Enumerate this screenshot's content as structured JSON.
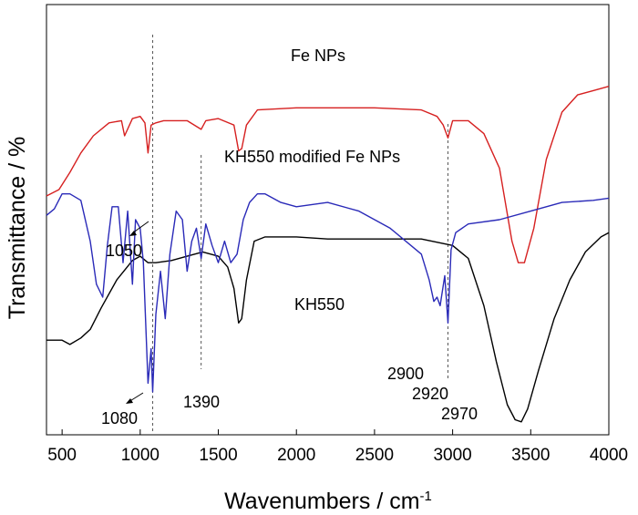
{
  "chart_data": {
    "type": "line",
    "title": "",
    "xlabel": "Wavenumbers / cm",
    "xlabel_superscript": "-1",
    "ylabel": "Transmittance / %",
    "xlim": [
      400,
      4000
    ],
    "xticks": [
      500,
      1000,
      1500,
      2000,
      2500,
      3000,
      3500,
      4000
    ],
    "y_ticks_shown": false,
    "grid": false,
    "legend": "none",
    "series": [
      {
        "name": "Fe NPs",
        "color": "#000000",
        "x": [
          400,
          500,
          550,
          620,
          680,
          750,
          850,
          950,
          1000,
          1050,
          1100,
          1200,
          1300,
          1400,
          1500,
          1560,
          1600,
          1630,
          1650,
          1680,
          1730,
          1800,
          2000,
          2200,
          2500,
          2800,
          3000,
          3100,
          3200,
          3280,
          3350,
          3400,
          3440,
          3480,
          3550,
          3650,
          3750,
          3850,
          3950,
          4000
        ],
        "y": [
          0.78,
          0.78,
          0.79,
          0.775,
          0.755,
          0.705,
          0.64,
          0.595,
          0.585,
          0.6,
          0.6,
          0.595,
          0.585,
          0.575,
          0.585,
          0.61,
          0.66,
          0.74,
          0.73,
          0.64,
          0.55,
          0.54,
          0.54,
          0.545,
          0.545,
          0.545,
          0.56,
          0.59,
          0.7,
          0.83,
          0.93,
          0.965,
          0.97,
          0.94,
          0.85,
          0.73,
          0.64,
          0.575,
          0.54,
          0.53
        ]
      },
      {
        "name": "KH550 modified Fe NPs",
        "color": "#d62020",
        "x": [
          400,
          480,
          550,
          620,
          700,
          800,
          880,
          900,
          950,
          1000,
          1030,
          1050,
          1070,
          1100,
          1150,
          1200,
          1300,
          1390,
          1420,
          1500,
          1600,
          1630,
          1650,
          1680,
          1750,
          2000,
          2200,
          2500,
          2800,
          2900,
          2940,
          2970,
          3000,
          3100,
          3200,
          3300,
          3380,
          3420,
          3460,
          3520,
          3600,
          3700,
          3800,
          3900,
          4000
        ],
        "y": [
          0.445,
          0.43,
          0.39,
          0.345,
          0.305,
          0.275,
          0.27,
          0.305,
          0.265,
          0.26,
          0.275,
          0.345,
          0.28,
          0.275,
          0.27,
          0.27,
          0.27,
          0.29,
          0.27,
          0.265,
          0.28,
          0.34,
          0.335,
          0.28,
          0.245,
          0.24,
          0.24,
          0.24,
          0.245,
          0.26,
          0.28,
          0.31,
          0.27,
          0.27,
          0.3,
          0.38,
          0.55,
          0.6,
          0.6,
          0.52,
          0.36,
          0.25,
          0.21,
          0.2,
          0.19
        ]
      },
      {
        "name": "KH550",
        "color": "#2a2ab8",
        "x": [
          400,
          450,
          500,
          550,
          620,
          680,
          720,
          760,
          790,
          820,
          860,
          890,
          920,
          950,
          970,
          1000,
          1020,
          1050,
          1070,
          1080,
          1100,
          1130,
          1160,
          1190,
          1230,
          1270,
          1300,
          1330,
          1360,
          1390,
          1420,
          1460,
          1500,
          1540,
          1580,
          1620,
          1660,
          1700,
          1750,
          1800,
          1900,
          2000,
          2200,
          2400,
          2600,
          2800,
          2850,
          2880,
          2900,
          2920,
          2950,
          2970,
          2990,
          3020,
          3100,
          3300,
          3500,
          3700,
          3900,
          4000
        ],
        "y": [
          0.49,
          0.475,
          0.44,
          0.44,
          0.455,
          0.55,
          0.65,
          0.68,
          0.56,
          0.47,
          0.47,
          0.6,
          0.48,
          0.65,
          0.5,
          0.52,
          0.6,
          0.88,
          0.8,
          0.9,
          0.72,
          0.62,
          0.73,
          0.58,
          0.48,
          0.5,
          0.62,
          0.55,
          0.52,
          0.59,
          0.51,
          0.56,
          0.6,
          0.55,
          0.6,
          0.58,
          0.5,
          0.46,
          0.44,
          0.44,
          0.46,
          0.47,
          0.46,
          0.48,
          0.52,
          0.58,
          0.64,
          0.69,
          0.68,
          0.7,
          0.63,
          0.74,
          0.57,
          0.53,
          0.51,
          0.5,
          0.48,
          0.46,
          0.455,
          0.45
        ]
      }
    ],
    "reference_lines_x": [
      1080,
      1390,
      2970
    ],
    "series_labels": [
      {
        "text": "Fe NPs",
        "series": 0
      },
      {
        "text": "KH550 modified Fe NPs",
        "series": 1
      },
      {
        "text": "KH550",
        "series": 2
      }
    ],
    "annotations": [
      "1050",
      "1080",
      "1390",
      "2900",
      "2920",
      "2970"
    ]
  }
}
